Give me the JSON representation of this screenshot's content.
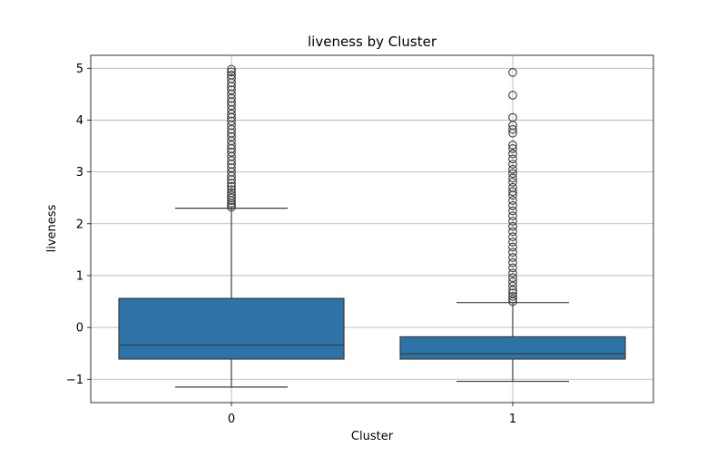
{
  "chart_data": {
    "type": "box",
    "title": "liveness by Cluster",
    "xlabel": "Cluster",
    "ylabel": "liveness",
    "ylim": [
      -1.45,
      5.25
    ],
    "yticks": [
      -1,
      0,
      1,
      2,
      3,
      4,
      5
    ],
    "ytick_labels": [
      "−1",
      "0",
      "1",
      "2",
      "3",
      "4",
      "5"
    ],
    "grid": true,
    "box_color": "#2e73a8",
    "line_color": "#3d3d3d",
    "categories": [
      "0",
      "1"
    ],
    "boxes": [
      {
        "category": "0",
        "whisker_low": -1.15,
        "q1": -0.61,
        "median": -0.34,
        "q3": 0.56,
        "whisker_high": 2.3,
        "outliers": [
          2.32,
          2.36,
          2.4,
          2.45,
          2.5,
          2.55,
          2.6,
          2.66,
          2.72,
          2.78,
          2.85,
          2.92,
          3.0,
          3.08,
          3.15,
          3.22,
          3.3,
          3.38,
          3.45,
          3.52,
          3.6,
          3.68,
          3.75,
          3.82,
          3.9,
          3.98,
          4.05,
          4.12,
          4.2,
          4.28,
          4.35,
          4.42,
          4.5,
          4.58,
          4.65,
          4.72,
          4.8,
          4.87,
          4.93,
          4.98
        ]
      },
      {
        "category": "1",
        "whisker_low": -1.04,
        "q1": -0.61,
        "median": -0.51,
        "q3": -0.18,
        "whisker_high": 0.48,
        "outliers": [
          0.5,
          0.55,
          0.6,
          0.66,
          0.72,
          0.8,
          0.88,
          0.96,
          1.05,
          1.15,
          1.25,
          1.35,
          1.45,
          1.55,
          1.65,
          1.75,
          1.85,
          1.95,
          2.05,
          2.15,
          2.25,
          2.35,
          2.45,
          2.55,
          2.62,
          2.7,
          2.8,
          2.88,
          2.97,
          3.05,
          3.15,
          3.25,
          3.35,
          3.45,
          3.52,
          3.75,
          3.82,
          3.9,
          4.05,
          4.48,
          4.92
        ]
      }
    ]
  }
}
